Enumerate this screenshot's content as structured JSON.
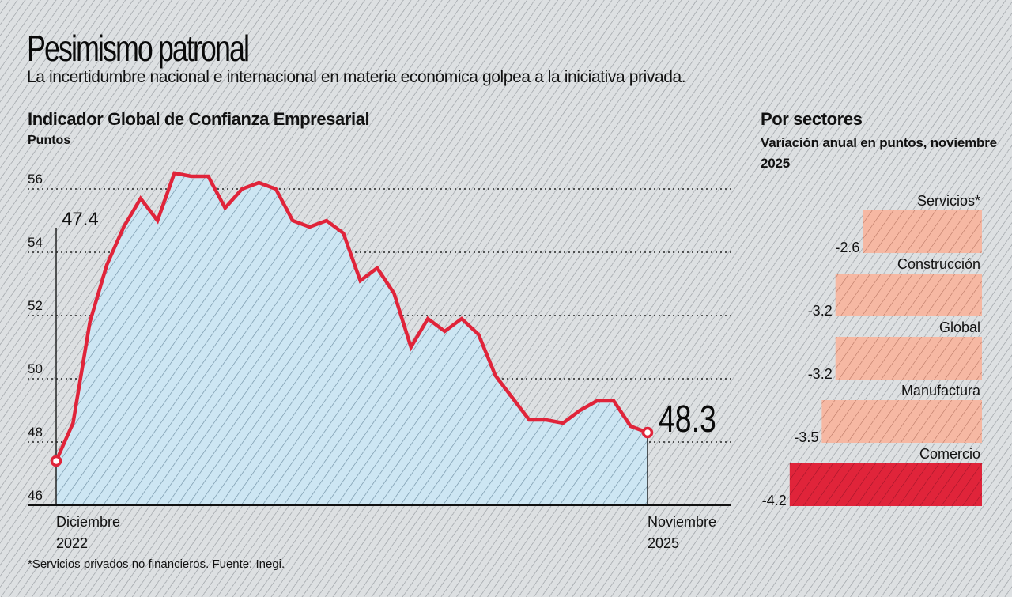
{
  "header": {
    "title": "Pesimismo patronal",
    "subtitle": "La incertidumbre nacional e internacional en materia económica golpea a la iniciativa privada."
  },
  "footnote": "*Servicios privados no financieros. Fuente: Inegi.",
  "colors": {
    "line": "#e0243a",
    "area_fill": "#cde6f3",
    "bar_light": "#f6b8a3",
    "bar_strong": "#e0243a",
    "background": "#dde0e2"
  },
  "chart_data": [
    {
      "type": "area",
      "title": "Indicador Global de Confianza Empresarial",
      "ylabel": "Puntos",
      "xlabel": "",
      "ylim": [
        46,
        56
      ],
      "yticks": [
        46,
        48,
        50,
        52,
        54,
        56
      ],
      "grid": true,
      "x_start_label": [
        "Diciembre",
        "2022"
      ],
      "x_end_label": [
        "Noviembre",
        "2025"
      ],
      "start_annotation": "47.4",
      "end_annotation": "48.3",
      "values": [
        47.4,
        48.6,
        51.8,
        53.6,
        54.8,
        55.7,
        55.0,
        56.5,
        56.4,
        56.4,
        55.4,
        56.0,
        56.2,
        56.0,
        55.0,
        54.8,
        55.0,
        54.6,
        53.1,
        53.5,
        52.7,
        51.0,
        51.9,
        51.5,
        51.9,
        51.4,
        50.1,
        49.4,
        48.7,
        48.7,
        48.6,
        49.0,
        49.3,
        49.3,
        48.5,
        48.3
      ]
    },
    {
      "type": "bar",
      "title": "Por sectores",
      "subtitle": "Variación anual en puntos, noviembre 2025",
      "categories": [
        "Servicios*",
        "Construcción",
        "Global",
        "Manufactura",
        "Comercio"
      ],
      "values": [
        -2.6,
        -3.2,
        -3.2,
        -3.5,
        -4.2
      ],
      "value_labels": [
        "-2.6",
        "-3.2",
        "-3.2",
        "-3.5",
        "-4.2"
      ],
      "highlight": "Comercio"
    }
  ]
}
